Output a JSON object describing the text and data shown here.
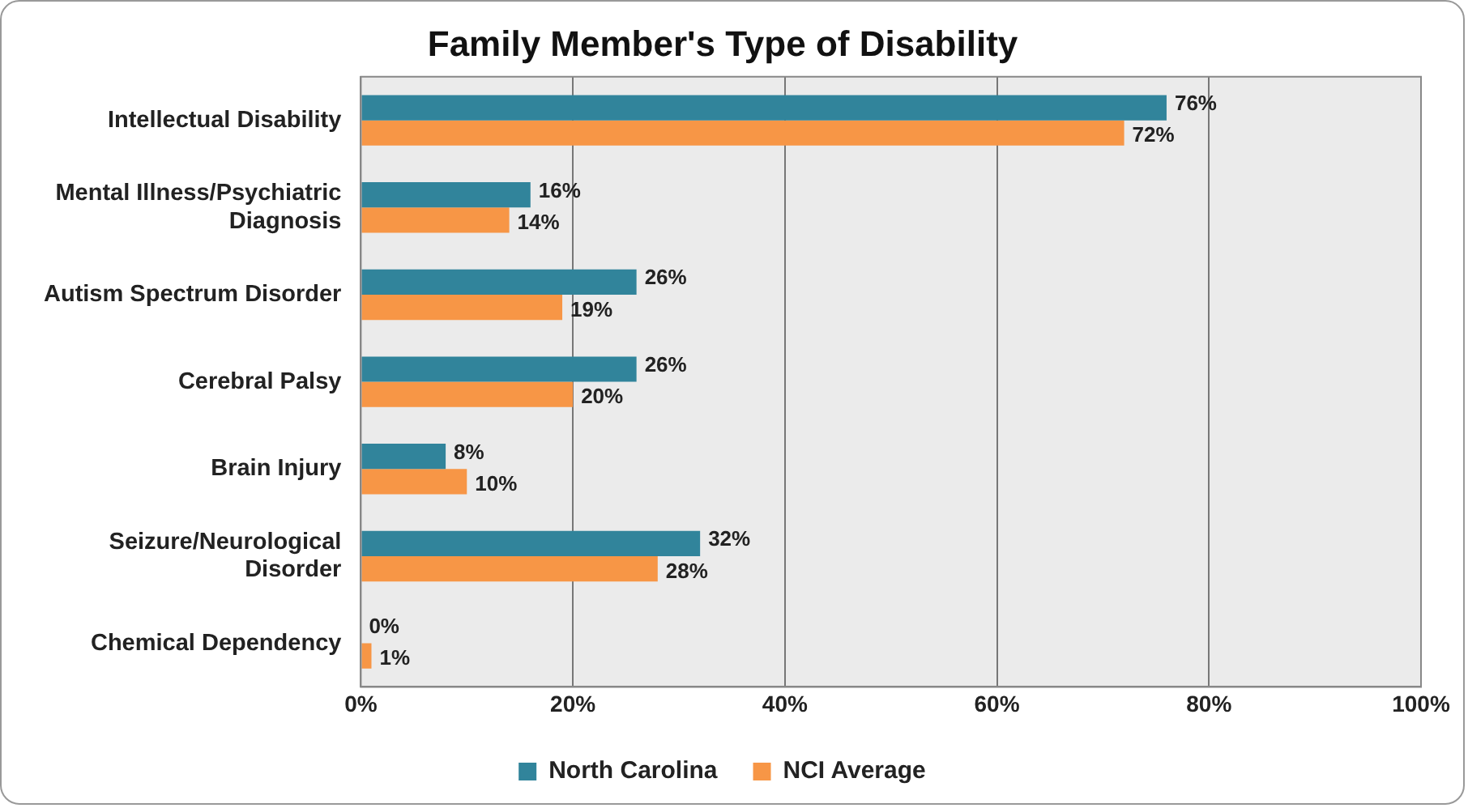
{
  "chart_data": {
    "type": "bar",
    "orientation": "horizontal",
    "title": "Family Member's Type of Disability",
    "categories": [
      "Intellectual Disability",
      "Mental Illness/Psychiatric Diagnosis",
      "Autism Spectrum Disorder",
      "Cerebral Palsy",
      "Brain Injury",
      "Seizure/Neurological Disorder",
      "Chemical Dependency"
    ],
    "series": [
      {
        "name": "North Carolina",
        "color": "#31849b",
        "values": [
          76,
          16,
          26,
          26,
          8,
          32,
          0
        ],
        "value_labels": [
          "76%",
          "16%",
          "26%",
          "26%",
          "8%",
          "32%",
          "0%"
        ]
      },
      {
        "name": "NCI Average",
        "color": "#f79646",
        "values": [
          72,
          14,
          19,
          20,
          10,
          28,
          1
        ],
        "value_labels": [
          "72%",
          "14%",
          "19%",
          "20%",
          "10%",
          "28%",
          "1%"
        ]
      }
    ],
    "xlim": [
      0,
      100
    ],
    "xticks": [
      {
        "value": 0,
        "label": "0%"
      },
      {
        "value": 20,
        "label": "20%"
      },
      {
        "value": 40,
        "label": "40%"
      },
      {
        "value": 60,
        "label": "60%"
      },
      {
        "value": 80,
        "label": "80%"
      },
      {
        "value": 100,
        "label": "100%"
      }
    ],
    "grid": "x",
    "legend": "bottom"
  }
}
